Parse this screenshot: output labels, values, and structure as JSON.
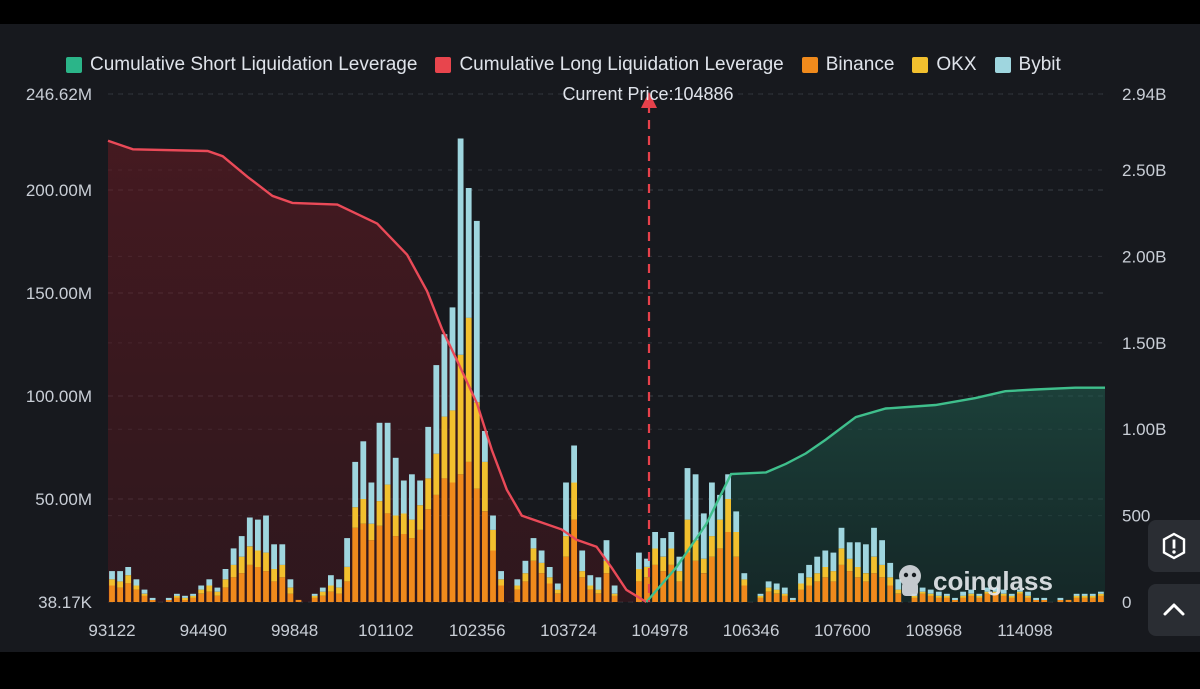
{
  "legend": {
    "items": [
      {
        "label": "Cumulative Short Liquidation Leverage",
        "color": "#2bb589"
      },
      {
        "label": "Cumulative Long Liquidation Leverage",
        "color": "#e8454d"
      },
      {
        "label": "Binance",
        "color": "#f08a1c"
      },
      {
        "label": "OKX",
        "color": "#f2c02e"
      },
      {
        "label": "Bybit",
        "color": "#9fd6df"
      }
    ]
  },
  "subtitle": "Current Price:104886",
  "watermark": "coinglass",
  "buttons": {
    "alert": "alert-icon",
    "scroll_top": "chevron-up-icon"
  },
  "chart_data": {
    "type": "bar",
    "title": "",
    "current_price": 104886,
    "x_tick_labels": [
      "93122",
      "94490",
      "99848",
      "101102",
      "102356",
      "103724",
      "104978",
      "106346",
      "107600",
      "108968",
      "114098"
    ],
    "left_axis": {
      "ticks": [
        "246.62M",
        "200.00M",
        "150.00M",
        "100.00M",
        "50.00M",
        "38.17K"
      ],
      "ylim": [
        0,
        246.62
      ],
      "unit": "M"
    },
    "right_axis": {
      "ticks": [
        "2.94B",
        "2.50B",
        "2.00B",
        "1.50B",
        "1.00B",
        "500",
        "0"
      ],
      "ylim": [
        0,
        2.94
      ],
      "unit": "B"
    },
    "grid": true,
    "stack_order": [
      "Binance",
      "OKX",
      "Bybit"
    ],
    "bars_binance": [
      8,
      7,
      9,
      6,
      3,
      1,
      0,
      1,
      2,
      1,
      2,
      4,
      5,
      3,
      7,
      12,
      14,
      18,
      17,
      15,
      10,
      12,
      4,
      1,
      0,
      2,
      3,
      5,
      4,
      10,
      36,
      38,
      30,
      37,
      43,
      32,
      33,
      31,
      35,
      45,
      52,
      60,
      58,
      62,
      68,
      55,
      44,
      25,
      8,
      0,
      6,
      10,
      20,
      14,
      9,
      4,
      22,
      40,
      12,
      6,
      4,
      14,
      3,
      0,
      0,
      10,
      12,
      18,
      15,
      18,
      10,
      24,
      20,
      14,
      22,
      26,
      34,
      22,
      8,
      0,
      2,
      5,
      4,
      3,
      1,
      6,
      8,
      10,
      12,
      10,
      18,
      15,
      12,
      10,
      14,
      12,
      8,
      4,
      0,
      2,
      4,
      3,
      2,
      2,
      1,
      2,
      3,
      2,
      4,
      4,
      3,
      2,
      4,
      2,
      1,
      1,
      0,
      1,
      1,
      2,
      2,
      2,
      3
    ],
    "bars_okx": [
      3,
      3,
      4,
      2,
      1,
      0,
      0,
      0,
      1,
      1,
      1,
      2,
      3,
      2,
      4,
      6,
      8,
      9,
      8,
      9,
      6,
      6,
      3,
      0,
      0,
      1,
      2,
      3,
      3,
      7,
      10,
      12,
      8,
      12,
      14,
      10,
      10,
      9,
      12,
      15,
      20,
      30,
      35,
      58,
      70,
      42,
      24,
      10,
      3,
      0,
      2,
      4,
      6,
      5,
      3,
      2,
      10,
      18,
      3,
      2,
      2,
      6,
      1,
      0,
      0,
      6,
      5,
      8,
      7,
      8,
      5,
      16,
      10,
      7,
      10,
      14,
      16,
      12,
      3,
      0,
      1,
      2,
      2,
      1,
      0,
      3,
      4,
      4,
      5,
      5,
      8,
      6,
      5,
      4,
      8,
      6,
      4,
      2,
      0,
      1,
      1,
      1,
      1,
      1,
      0,
      1,
      1,
      1,
      1,
      1,
      1,
      1,
      1,
      1,
      0,
      0,
      0,
      0,
      0,
      1,
      1,
      1,
      1
    ],
    "bars_bybit": [
      4,
      5,
      4,
      3,
      2,
      1,
      0,
      1,
      1,
      1,
      1,
      2,
      3,
      2,
      5,
      8,
      10,
      14,
      15,
      18,
      12,
      10,
      4,
      0,
      0,
      1,
      2,
      5,
      4,
      14,
      22,
      28,
      20,
      38,
      30,
      28,
      16,
      22,
      12,
      25,
      43,
      40,
      50,
      105,
      63,
      88,
      15,
      7,
      4,
      0,
      3,
      6,
      5,
      6,
      5,
      3,
      26,
      18,
      10,
      5,
      6,
      10,
      4,
      0,
      0,
      8,
      4,
      8,
      9,
      8,
      7,
      25,
      32,
      22,
      26,
      12,
      12,
      10,
      3,
      0,
      1,
      3,
      3,
      3,
      1,
      5,
      6,
      8,
      8,
      9,
      10,
      8,
      12,
      14,
      14,
      12,
      7,
      5,
      0,
      1,
      2,
      2,
      2,
      1,
      1,
      2,
      2,
      1,
      2,
      2,
      2,
      1,
      1,
      2,
      1,
      1,
      0,
      1,
      0,
      1,
      1,
      1,
      1
    ],
    "series": [
      {
        "name": "Cumulative Long Liquidation Leverage",
        "axis": "right",
        "unit": "B",
        "points": [
          [
            0,
            2.67
          ],
          [
            0.025,
            2.62
          ],
          [
            0.1,
            2.61
          ],
          [
            0.115,
            2.58
          ],
          [
            0.14,
            2.46
          ],
          [
            0.165,
            2.35
          ],
          [
            0.185,
            2.31
          ],
          [
            0.23,
            2.3
          ],
          [
            0.27,
            2.19
          ],
          [
            0.3,
            2.01
          ],
          [
            0.32,
            1.8
          ],
          [
            0.335,
            1.58
          ],
          [
            0.35,
            1.4
          ],
          [
            0.37,
            1.15
          ],
          [
            0.385,
            0.88
          ],
          [
            0.4,
            0.65
          ],
          [
            0.415,
            0.5
          ],
          [
            0.44,
            0.45
          ],
          [
            0.455,
            0.42
          ],
          [
            0.47,
            0.36
          ],
          [
            0.49,
            0.32
          ],
          [
            0.505,
            0.2
          ],
          [
            0.52,
            0.07
          ],
          [
            0.54,
            0.0
          ]
        ]
      },
      {
        "name": "Cumulative Short Liquidation Leverage",
        "axis": "right",
        "unit": "B",
        "points": [
          [
            0.54,
            0.0
          ],
          [
            0.57,
            0.2
          ],
          [
            0.6,
            0.45
          ],
          [
            0.625,
            0.74
          ],
          [
            0.66,
            0.75
          ],
          [
            0.68,
            0.8
          ],
          [
            0.7,
            0.86
          ],
          [
            0.72,
            0.94
          ],
          [
            0.75,
            1.07
          ],
          [
            0.78,
            1.12
          ],
          [
            0.83,
            1.14
          ],
          [
            0.87,
            1.18
          ],
          [
            0.9,
            1.22
          ],
          [
            0.93,
            1.23
          ],
          [
            0.97,
            1.24
          ],
          [
            1.0,
            1.24
          ]
        ]
      }
    ]
  }
}
